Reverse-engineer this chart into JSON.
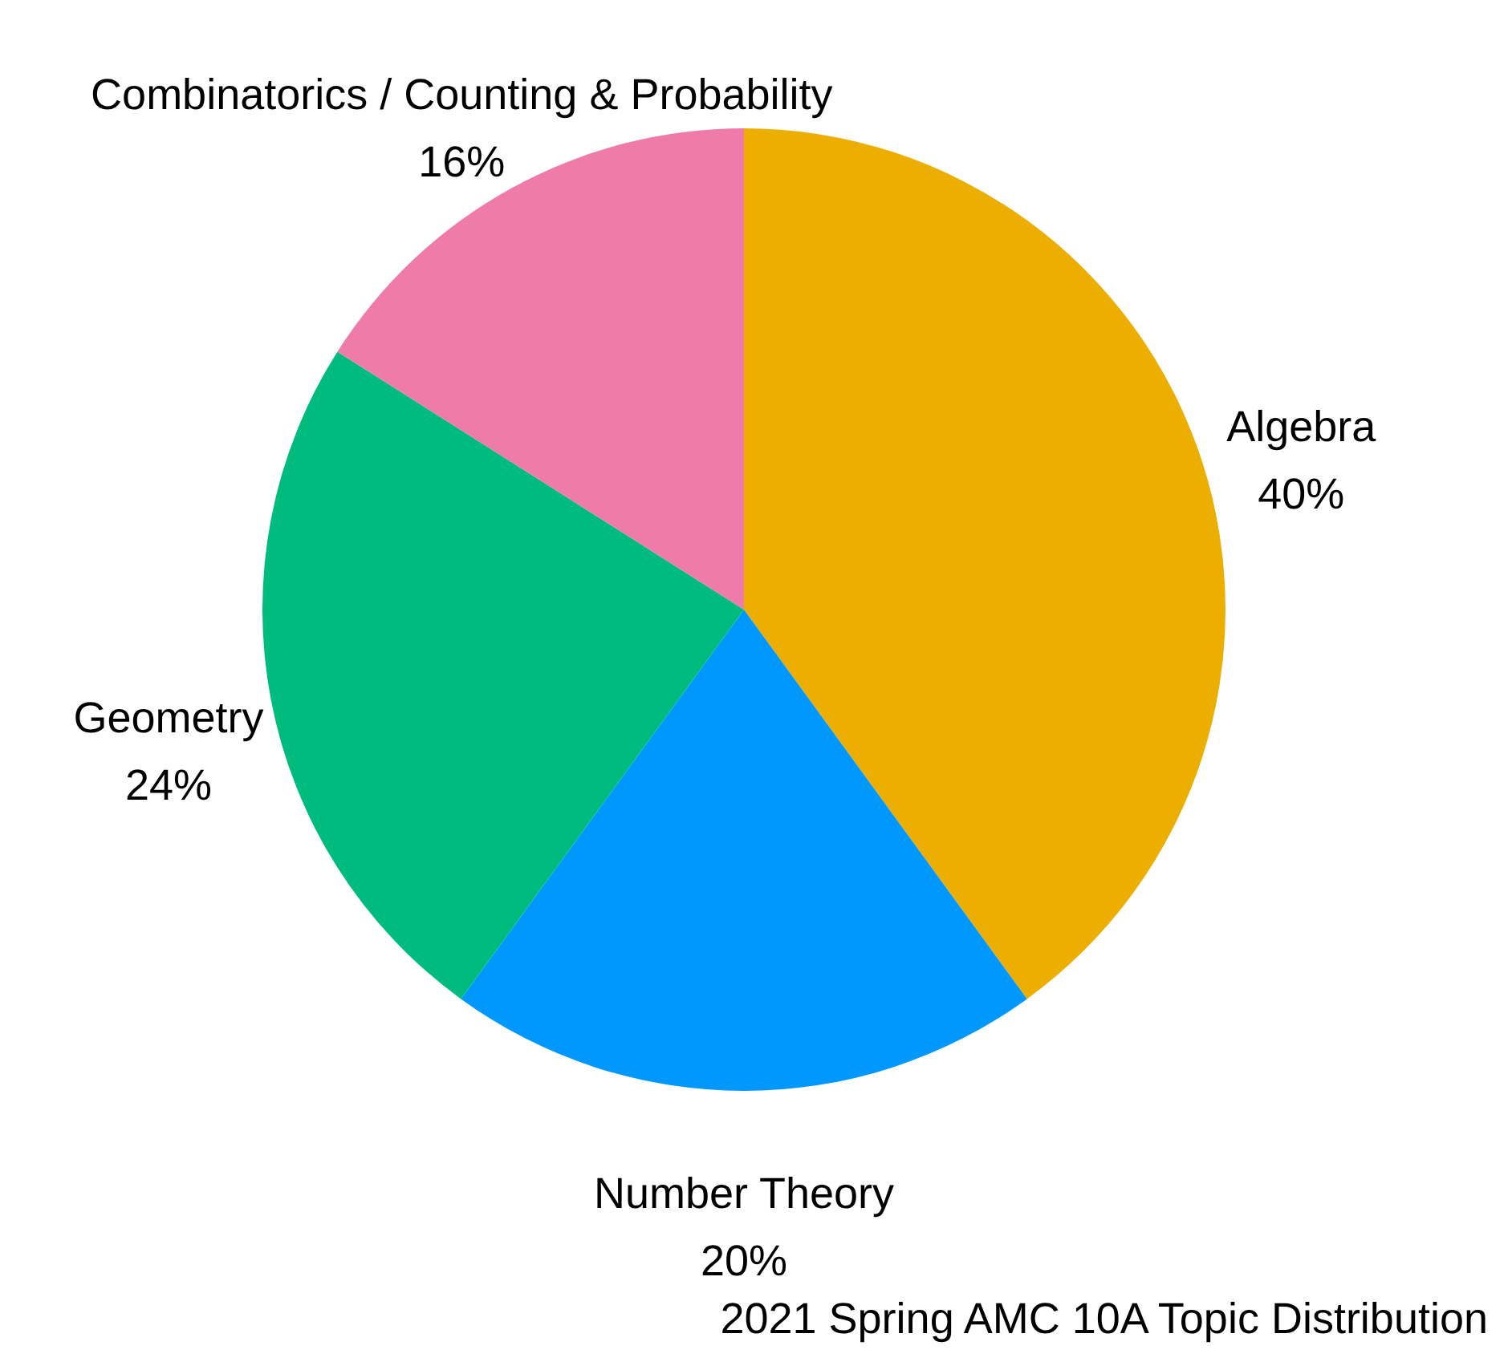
{
  "chart_data": {
    "type": "pie",
    "title": "2021 Spring AMC 10A Topic Distribution",
    "categories": [
      "Algebra",
      "Number Theory",
      "Geometry",
      "Combinatorics / Counting & Probability"
    ],
    "values": [
      40,
      20,
      24,
      16
    ],
    "value_labels": [
      "40%",
      "20%",
      "24%",
      "16%"
    ],
    "colors": [
      "#ecae00",
      "#0098ff",
      "#00bb7e",
      "#ef7bab"
    ],
    "legend": false
  }
}
